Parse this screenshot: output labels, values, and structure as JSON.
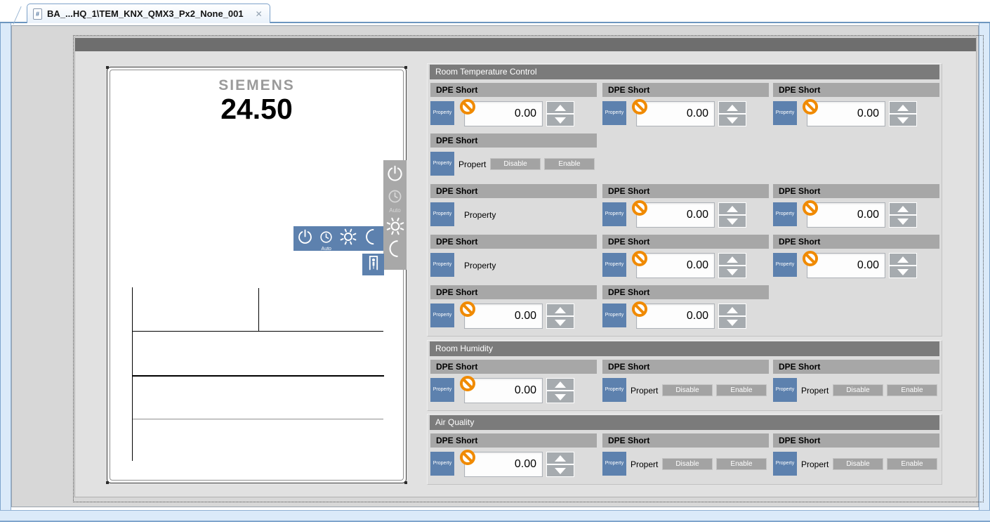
{
  "window": {
    "tab_title": "BA_...HQ_1\\TEM_KNX_QMX3_Px2_None_001",
    "close_glyph": "✕",
    "doc_glyph": "#"
  },
  "device_preview": {
    "brand": "SIEMENS",
    "temperature": "24.50"
  },
  "mode_strips": {
    "vertical_auto_label": "Auto",
    "horizontal_auto_label": "Auto",
    "icons": [
      "power",
      "clock-auto",
      "sun",
      "moon"
    ]
  },
  "colors": {
    "accent_blue": "#5d81ae",
    "strip_gray": "#a8a8a8",
    "section_header_gray": "#7b7b7b",
    "column_header_gray": "#a7a7a7",
    "prohibit_orange": "#f08a00",
    "button_gray": "#a3a3a3"
  },
  "sections": [
    {
      "title": "Room Temperature Control",
      "rows": [
        {
          "cells": [
            {
              "type": "spin",
              "header": "DPE Short",
              "button": "Property",
              "value": "0.00"
            },
            {
              "type": "spin",
              "header": "DPE Short",
              "button": "Property",
              "value": "0.00"
            },
            {
              "type": "spin",
              "header": "DPE Short",
              "button": "Property",
              "value": "0.00"
            }
          ]
        },
        {
          "cells": [
            {
              "type": "buttons",
              "header": "DPE Short",
              "button": "Property",
              "label": "Propert",
              "disable": "Disable",
              "enable": "Enable"
            },
            {
              "type": "empty"
            },
            {
              "type": "empty"
            }
          ]
        },
        {
          "cells": [
            {
              "type": "label",
              "header": "DPE Short",
              "button": "Property",
              "label": "Property"
            },
            {
              "type": "spin",
              "header": "DPE Short",
              "button": "Property",
              "value": "0.00"
            },
            {
              "type": "spin",
              "header": "DPE Short",
              "button": "Property",
              "value": "0.00"
            }
          ]
        },
        {
          "cells": [
            {
              "type": "label",
              "header": "DPE Short",
              "button": "Property",
              "label": "Property"
            },
            {
              "type": "spin",
              "header": "DPE Short",
              "button": "Property",
              "value": "0.00"
            },
            {
              "type": "spin",
              "header": "DPE Short",
              "button": "Property",
              "value": "0.00"
            }
          ]
        },
        {
          "cells": [
            {
              "type": "spin",
              "header": "DPE Short",
              "button": "Property",
              "value": "0.00"
            },
            {
              "type": "spin",
              "header": "DPE Short",
              "button": "Property",
              "value": "0.00"
            },
            {
              "type": "empty"
            }
          ]
        }
      ]
    },
    {
      "title": "Room Humidity",
      "rows": [
        {
          "cells": [
            {
              "type": "spin",
              "header": "DPE Short",
              "button": "Property",
              "value": "0.00"
            },
            {
              "type": "buttons",
              "header": "DPE Short",
              "button": "Property",
              "label": "Propert",
              "disable": "Disable",
              "enable": "Enable"
            },
            {
              "type": "buttons",
              "header": "DPE Short",
              "button": "Property",
              "label": "Propert",
              "disable": "Disable",
              "enable": "Enable"
            }
          ]
        }
      ]
    },
    {
      "title": "Air Quality",
      "rows": [
        {
          "cells": [
            {
              "type": "spin",
              "header": "DPE Short",
              "button": "Property",
              "value": "0.00"
            },
            {
              "type": "buttons",
              "header": "DPE Short",
              "button": "Property",
              "label": "Propert",
              "disable": "Disable",
              "enable": "Enable"
            },
            {
              "type": "buttons",
              "header": "DPE Short",
              "button": "Property",
              "label": "Propert",
              "disable": "Disable",
              "enable": "Enable"
            }
          ]
        }
      ]
    }
  ]
}
